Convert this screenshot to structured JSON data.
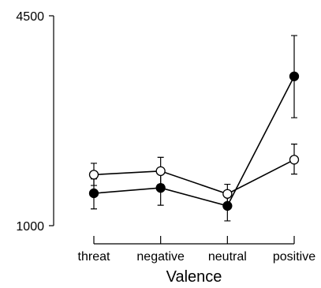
{
  "chart_data": {
    "type": "line",
    "categories": [
      "threat",
      "negative",
      "neutral",
      "positive"
    ],
    "xlabel": "Valence",
    "ylabel": "",
    "ylim": [
      1000,
      4500
    ],
    "y_ticks": [
      1000,
      4500
    ],
    "y_tick_labels": [
      "1000",
      "4500"
    ],
    "grid": false,
    "legend": "none",
    "series": [
      {
        "marker": "filled",
        "color": "#000000",
        "values": [
          1540,
          1630,
          1330,
          3490
        ],
        "error_low": [
          1280,
          1340,
          1080,
          2800
        ],
        "error_high": [
          1780,
          1920,
          1510,
          4170
        ]
      },
      {
        "marker": "open",
        "color": "#ffffff",
        "values": [
          1850,
          1910,
          1530,
          2100
        ],
        "error_low": [
          1670,
          1690,
          1380,
          1860
        ],
        "error_high": [
          2040,
          2140,
          1690,
          2360
        ]
      }
    ]
  }
}
